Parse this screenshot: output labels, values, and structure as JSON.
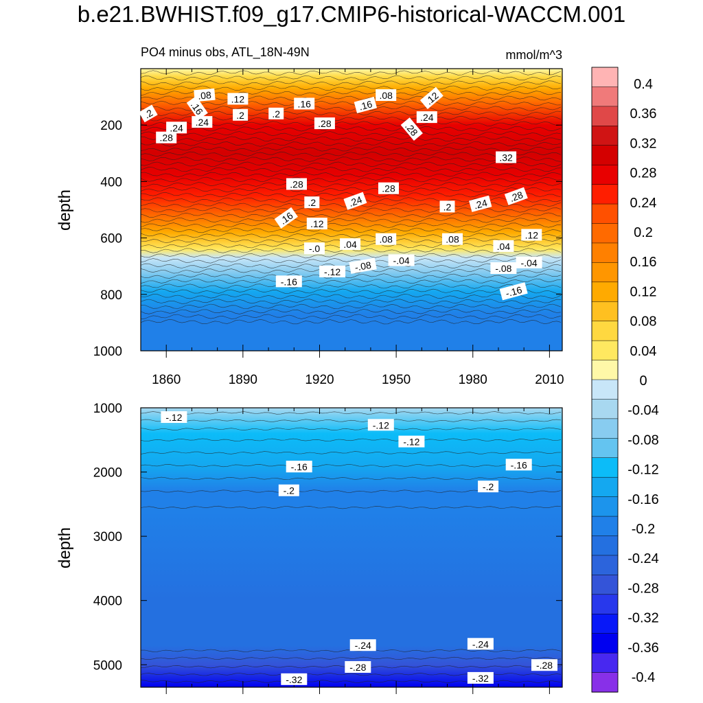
{
  "figure": {
    "title": "b.e21.BWHIST.f09_g17.CMIP6-historical-WACCM.001"
  },
  "chart_data": [
    {
      "type": "heatmap",
      "panel": "upper",
      "left_string": "PO4 minus obs, ATL_18N-49N",
      "right_string": "mmol/m^3",
      "ylabel": "depth",
      "xlabel": "",
      "ylim": [
        1000,
        0
      ],
      "xlim": [
        1850,
        2015
      ],
      "x_ticks": [
        1860,
        1890,
        1920,
        1950,
        1980,
        2010
      ],
      "y_ticks": [
        200,
        400,
        600,
        800,
        1000
      ],
      "depth_profile": [
        {
          "depth": 0,
          "value": 0.02
        },
        {
          "depth": 30,
          "value": 0.06
        },
        {
          "depth": 70,
          "value": 0.12
        },
        {
          "depth": 120,
          "value": 0.2
        },
        {
          "depth": 200,
          "value": 0.28
        },
        {
          "depth": 300,
          "value": 0.32
        },
        {
          "depth": 380,
          "value": 0.3
        },
        {
          "depth": 450,
          "value": 0.26
        },
        {
          "depth": 520,
          "value": 0.2
        },
        {
          "depth": 580,
          "value": 0.12
        },
        {
          "depth": 640,
          "value": 0.04
        },
        {
          "depth": 670,
          "value": -0.01
        },
        {
          "depth": 720,
          "value": -0.08
        },
        {
          "depth": 790,
          "value": -0.16
        },
        {
          "depth": 870,
          "value": -0.2
        },
        {
          "depth": 1000,
          "value": -0.2
        }
      ],
      "contour_labels": [
        {
          "text": ".08",
          "year": 1875,
          "depth": 95,
          "angle": -5
        },
        {
          "text": ".12",
          "year": 1888,
          "depth": 108,
          "angle": 0
        },
        {
          "text": ".16",
          "year": 1872,
          "depth": 140,
          "angle": 55
        },
        {
          "text": ".16",
          "year": 1914,
          "depth": 125,
          "angle": 0
        },
        {
          "text": ".16",
          "year": 1938,
          "depth": 130,
          "angle": -15
        },
        {
          "text": ".08",
          "year": 1946,
          "depth": 95,
          "angle": 0
        },
        {
          "text": ".12",
          "year": 1964,
          "depth": 105,
          "angle": -40
        },
        {
          "text": ".2",
          "year": 1853,
          "depth": 160,
          "angle": -30
        },
        {
          "text": ".2",
          "year": 1889,
          "depth": 165,
          "angle": 0
        },
        {
          "text": ".2",
          "year": 1903,
          "depth": 160,
          "angle": 0
        },
        {
          "text": ".24",
          "year": 1864,
          "depth": 210,
          "angle": 0
        },
        {
          "text": ".24",
          "year": 1874,
          "depth": 190,
          "angle": 0
        },
        {
          "text": ".24",
          "year": 1962,
          "depth": 173,
          "angle": 0
        },
        {
          "text": ".28",
          "year": 1922,
          "depth": 195,
          "angle": 0
        },
        {
          "text": ".28",
          "year": 1956,
          "depth": 215,
          "angle": 50
        },
        {
          "text": ".28",
          "year": 1860,
          "depth": 245,
          "angle": 0
        },
        {
          "text": ".32",
          "year": 1993,
          "depth": 315,
          "angle": 0
        },
        {
          "text": ".28",
          "year": 1911,
          "depth": 410,
          "angle": 0
        },
        {
          "text": ".28",
          "year": 1947,
          "depth": 425,
          "angle": 0
        },
        {
          "text": ".2",
          "year": 1917,
          "depth": 475,
          "angle": 0
        },
        {
          "text": ".24",
          "year": 1934,
          "depth": 470,
          "angle": -20
        },
        {
          "text": ".16",
          "year": 1907,
          "depth": 530,
          "angle": -35
        },
        {
          "text": ".12",
          "year": 1919,
          "depth": 550,
          "angle": 0
        },
        {
          "text": ".2",
          "year": 1970,
          "depth": 490,
          "angle": 0
        },
        {
          "text": ".24",
          "year": 1983,
          "depth": 480,
          "angle": -15
        },
        {
          "text": ".28",
          "year": 1997,
          "depth": 453,
          "angle": -20
        },
        {
          "text": ".12",
          "year": 2003,
          "depth": 590,
          "angle": 0
        },
        {
          "text": ".08",
          "year": 1946,
          "depth": 605,
          "angle": 0
        },
        {
          "text": ".08",
          "year": 1972,
          "depth": 605,
          "angle": 0
        },
        {
          "text": ".04",
          "year": 1932,
          "depth": 623,
          "angle": 0
        },
        {
          "text": ".04",
          "year": 1992,
          "depth": 630,
          "angle": 0
        },
        {
          "text": "-.0",
          "year": 1918,
          "depth": 638,
          "angle": 0
        },
        {
          "text": "-.04",
          "year": 1952,
          "depth": 680,
          "angle": 0
        },
        {
          "text": "-.04",
          "year": 2002,
          "depth": 688,
          "angle": 0
        },
        {
          "text": "-.08",
          "year": 1937,
          "depth": 700,
          "angle": -10
        },
        {
          "text": "-.08",
          "year": 1992,
          "depth": 708,
          "angle": 0
        },
        {
          "text": "-.12",
          "year": 1925,
          "depth": 720,
          "angle": 0
        },
        {
          "text": "-.16",
          "year": 1908,
          "depth": 755,
          "angle": 0
        },
        {
          "text": "-.16",
          "year": 1996,
          "depth": 790,
          "angle": -15
        }
      ]
    },
    {
      "type": "heatmap",
      "panel": "lower",
      "ylabel": "depth",
      "xlabel": "",
      "ylim": [
        5350,
        1000
      ],
      "xlim": [
        1850,
        2015
      ],
      "y_ticks": [
        1000,
        2000,
        3000,
        4000,
        5000
      ],
      "depth_profile": [
        {
          "depth": 1000,
          "value": -0.04
        },
        {
          "depth": 1400,
          "value": -0.12
        },
        {
          "depth": 1900,
          "value": -0.16
        },
        {
          "depth": 2300,
          "value": -0.2
        },
        {
          "depth": 2600,
          "value": -0.21
        },
        {
          "depth": 4000,
          "value": -0.23
        },
        {
          "depth": 4700,
          "value": -0.24
        },
        {
          "depth": 5000,
          "value": -0.28
        },
        {
          "depth": 5350,
          "value": -0.36
        }
      ],
      "contour_labels": [
        {
          "text": "-.12",
          "year": 1863,
          "depth": 1150,
          "angle": 0
        },
        {
          "text": "-.12",
          "year": 1944,
          "depth": 1270,
          "angle": 0
        },
        {
          "text": "-.12",
          "year": 1956,
          "depth": 1530,
          "angle": 0
        },
        {
          "text": "-.16",
          "year": 1912,
          "depth": 1920,
          "angle": 0
        },
        {
          "text": "-.16",
          "year": 1998,
          "depth": 1890,
          "angle": 0
        },
        {
          "text": "-.2",
          "year": 1908,
          "depth": 2290,
          "angle": 0
        },
        {
          "text": "-.2",
          "year": 1986,
          "depth": 2230,
          "angle": 0
        },
        {
          "text": "-.24",
          "year": 1937,
          "depth": 4700,
          "angle": 0
        },
        {
          "text": "-.24",
          "year": 1983,
          "depth": 4680,
          "angle": 0
        },
        {
          "text": "-.28",
          "year": 1935,
          "depth": 5040,
          "angle": 0
        },
        {
          "text": "-.28",
          "year": 2008,
          "depth": 5010,
          "angle": 0
        },
        {
          "text": "-.32",
          "year": 1910,
          "depth": 5230,
          "angle": 0
        },
        {
          "text": "-.32",
          "year": 1983,
          "depth": 5210,
          "angle": 0
        }
      ]
    },
    {
      "type": "colorbar",
      "levels": [
        "0.4",
        "0.36",
        "0.32",
        "0.28",
        "0.24",
        "0.2",
        "0.16",
        "0.12",
        "0.08",
        "0.04",
        "0",
        "-0.04",
        "-0.08",
        "-0.12",
        "-0.16",
        "-0.2",
        "-0.24",
        "-0.28",
        "-0.32",
        "-0.36",
        "-0.4"
      ],
      "colors": [
        "#FFB4B4",
        "#F07A7A",
        "#E04848",
        "#D01414",
        "#D40000",
        "#E80000",
        "#FF1E00",
        "#FF5000",
        "#FF6A00",
        "#FF8000",
        "#FF9600",
        "#FFAA00",
        "#FFC020",
        "#FFD840",
        "#FFE860",
        "#FFF8A8",
        "#C8E6F8",
        "#A8D8F0",
        "#88CCF0",
        "#64C4F0",
        "#0CBCF8",
        "#14A8F0",
        "#1C94EC",
        "#2080E8",
        "#2470E0",
        "#2C64DC",
        "#3454D8",
        "#2838EC",
        "#0818F8",
        "#0000F0",
        "#4828F0",
        "#8830E8"
      ]
    }
  ]
}
